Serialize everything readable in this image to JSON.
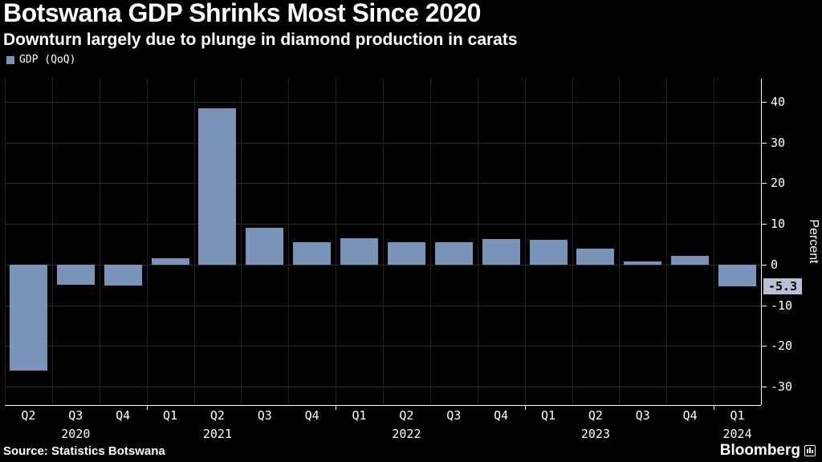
{
  "header": {
    "title": "Botswana GDP Shrinks Most Since 2020",
    "subtitle": "Downturn largely due to plunge in diamond production in carats"
  },
  "legend": {
    "label": "GDP (QoQ)"
  },
  "chart_data": {
    "type": "bar",
    "title": "Botswana GDP Shrinks Most Since 2020",
    "subtitle": "Downturn largely due to plunge in diamond production in carats",
    "legend_entries": [
      "GDP (QoQ)"
    ],
    "legend_position": "top-left",
    "ylabel": "Percent",
    "categories": [
      "Q2 2020",
      "Q3 2020",
      "Q4 2020",
      "Q1 2021",
      "Q2 2021",
      "Q3 2021",
      "Q4 2021",
      "Q1 2022",
      "Q2 2022",
      "Q3 2022",
      "Q4 2022",
      "Q1 2023",
      "Q2 2023",
      "Q3 2023",
      "Q4 2023",
      "Q1 2024"
    ],
    "quarter_labels": [
      "Q2",
      "Q3",
      "Q4",
      "Q1",
      "Q2",
      "Q3",
      "Q4",
      "Q1",
      "Q2",
      "Q3",
      "Q4",
      "Q1",
      "Q2",
      "Q3",
      "Q4",
      "Q1"
    ],
    "year_groups": [
      {
        "label": "2020",
        "span": 3
      },
      {
        "label": "2021",
        "span": 4
      },
      {
        "label": "2022",
        "span": 4
      },
      {
        "label": "2023",
        "span": 4
      },
      {
        "label": "2024",
        "span": 1
      }
    ],
    "values": [
      -26,
      -5,
      -5.2,
      1.5,
      38.5,
      9,
      5.5,
      6.5,
      5.5,
      5.5,
      6.2,
      6,
      4,
      0.7,
      2.2,
      -5.3
    ],
    "y_ticks": [
      40,
      30,
      20,
      10,
      0,
      -10,
      -20,
      -30
    ],
    "ylim": [
      -34.5,
      45.7
    ],
    "grid": true,
    "last_value_label": "-5.3",
    "bar_color": "#7a93b8",
    "grid_color": "#2a2a2a",
    "axis_color": "#ffffff",
    "last_value_bg": "#b5c1d4",
    "background_color": "#000000"
  },
  "footer": {
    "source": "Source:  Statistics Botswana",
    "brand": "Bloomberg"
  }
}
